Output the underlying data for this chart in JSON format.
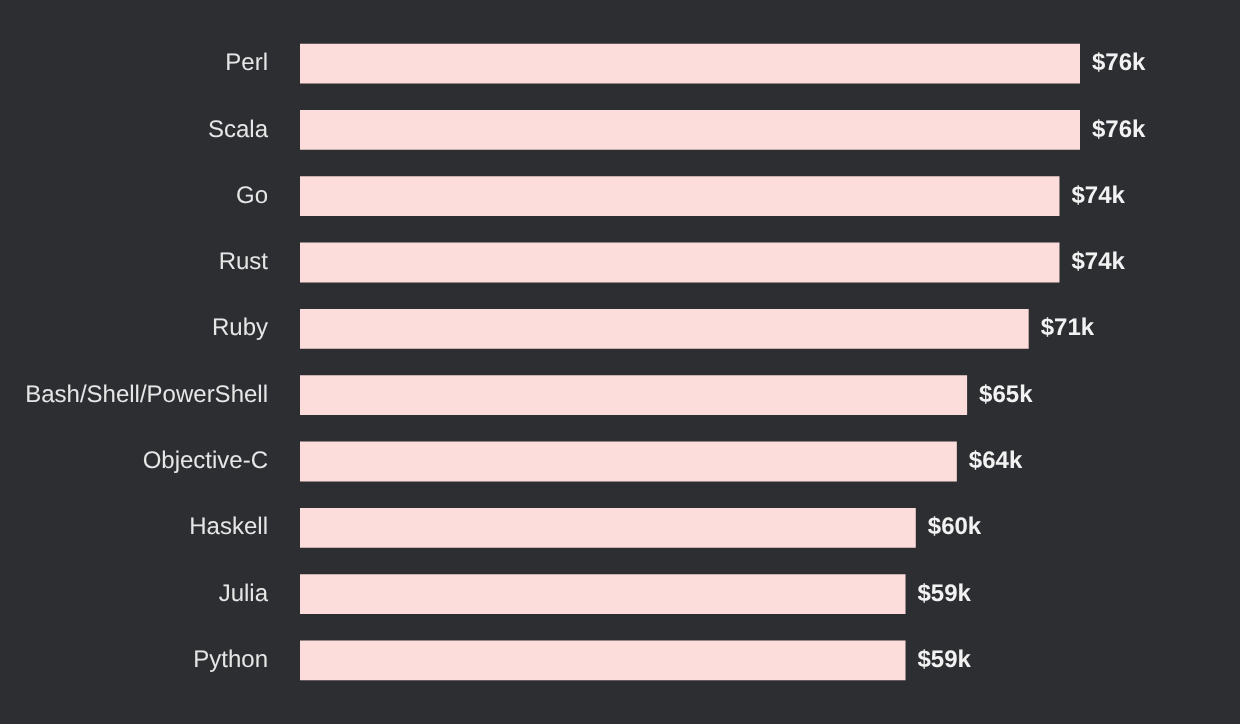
{
  "chart_data": {
    "type": "bar",
    "orientation": "horizontal",
    "categories": [
      "Perl",
      "Scala",
      "Go",
      "Rust",
      "Ruby",
      "Bash/Shell/PowerShell",
      "Objective-C",
      "Haskell",
      "Julia",
      "Python"
    ],
    "values": [
      76,
      76,
      74,
      74,
      71,
      65,
      64,
      60,
      59,
      59
    ],
    "value_labels": [
      "$76k",
      "$76k",
      "$74k",
      "$74k",
      "$71k",
      "$65k",
      "$64k",
      "$60k",
      "$59k",
      "$59k"
    ],
    "color": "#fddcdc",
    "legend": false,
    "tick_labels": "y"
  }
}
